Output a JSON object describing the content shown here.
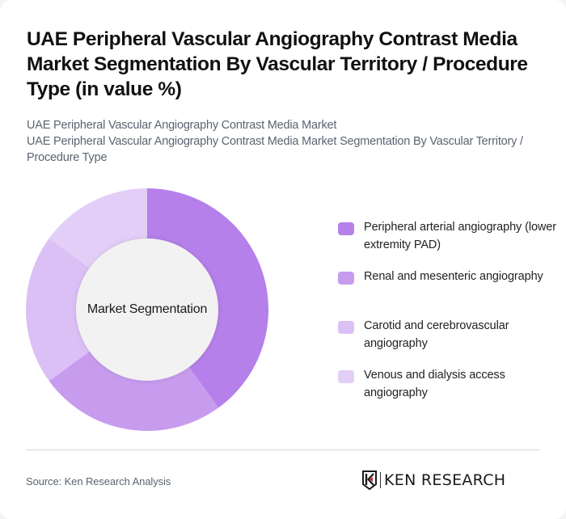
{
  "header": {
    "title": "UAE Peripheral Vascular Angiography Contrast Media Market Segmentation By Vascular Territory / Procedure Type (in value %)",
    "subtitle_line1": "UAE Peripheral Vascular Angiography Contrast Media Market",
    "subtitle_line2": "UAE Peripheral Vascular Angiography Contrast Media Market Segmentation By Vascular Territory / Procedure Type"
  },
  "chart": {
    "center_label": "Market Segmentation"
  },
  "legend": {
    "items": [
      {
        "label": "Peripheral arterial angiography (lower extremity PAD)",
        "color": "#b580ea"
      },
      {
        "label": "Renal and mesenteric angiography",
        "color": "#c79bee"
      },
      {
        "label": "Carotid and cerebrovascular angiography",
        "color": "#dbc0f5"
      },
      {
        "label": "Venous and dialysis access angiography",
        "color": "#e3cef7"
      }
    ]
  },
  "footer": {
    "source": "Source: Ken Research Analysis",
    "logo_text": "KEN RESEARCH"
  },
  "chart_data": {
    "type": "pie",
    "variant": "donut",
    "title": "UAE Peripheral Vascular Angiography Contrast Media Market Segmentation By Vascular Territory / Procedure Type (in value %)",
    "center_label": "Market Segmentation",
    "categories": [
      "Peripheral arterial angiography (lower extremity PAD)",
      "Renal and mesenteric angiography",
      "Carotid and cerebrovascular angiography",
      "Venous and dialysis access angiography"
    ],
    "values": [
      40,
      25,
      20,
      15
    ],
    "unit": "%",
    "colors": [
      "#b580ea",
      "#c79bee",
      "#dbc0f5",
      "#e3cef7"
    ],
    "start_angle": "12 o'clock",
    "direction": "clockwise",
    "legend_position": "right",
    "data_labels": false
  }
}
